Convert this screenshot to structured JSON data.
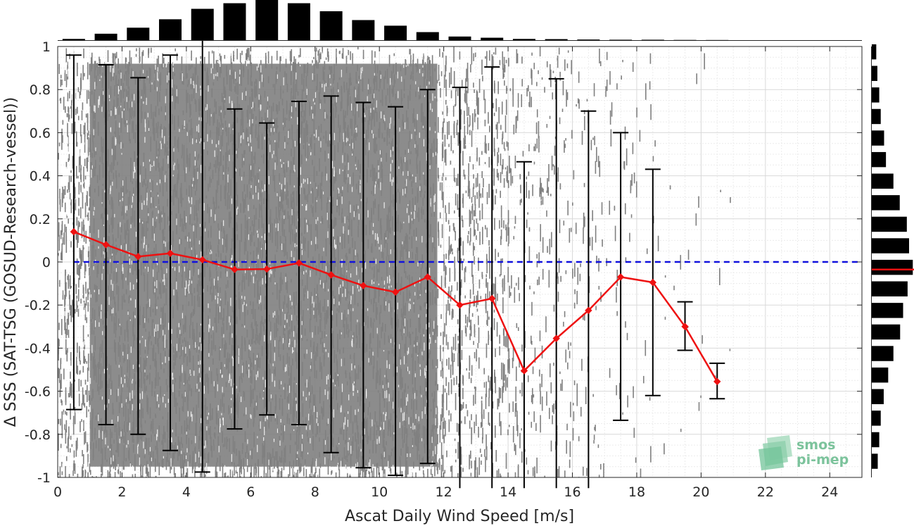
{
  "chart_data": {
    "type": "scatter",
    "xlabel": "Ascat Daily Wind Speed [m/s]",
    "ylabel": "Δ SSS (SAT-TSG (GOSUD-Research-vessel))",
    "xlim": [
      0,
      25
    ],
    "ylim": [
      -1,
      1
    ],
    "xticks": [
      0,
      2,
      4,
      6,
      8,
      10,
      12,
      14,
      16,
      18,
      20,
      22,
      24
    ],
    "yticks": [
      -1,
      -0.8,
      -0.6,
      -0.4,
      -0.2,
      0,
      0.2,
      0.4,
      0.6,
      0.8,
      1
    ],
    "grid": true,
    "colors": {
      "scatter": "#808080",
      "mean_line": "#ee1111",
      "reference_line": "#1111dd",
      "error_bars": "#000000",
      "histograms": "#000000",
      "logo": "#6fbf96"
    },
    "reference_line_y": 0,
    "bins": {
      "x": [
        0.5,
        1.5,
        2.5,
        3.5,
        4.5,
        5.5,
        6.5,
        7.5,
        8.5,
        9.5,
        10.5,
        11.5,
        12.5,
        13.5,
        14.5,
        15.5,
        16.5,
        17.5,
        18.5,
        19.5,
        20.5
      ],
      "mean": [
        0.14,
        0.08,
        0.025,
        0.04,
        0.01,
        -0.035,
        -0.033,
        -0.005,
        -0.06,
        -0.11,
        -0.14,
        -0.07,
        -0.2,
        -0.17,
        -0.505,
        -0.355,
        -0.225,
        -0.07,
        -0.095,
        -0.3,
        -0.555
      ],
      "upper": [
        0.96,
        0.915,
        0.855,
        0.96,
        1.04,
        0.71,
        0.645,
        0.745,
        0.77,
        0.74,
        0.72,
        0.8,
        0.81,
        0.905,
        0.465,
        0.85,
        0.7,
        0.6,
        0.43,
        -0.185,
        -0.47
      ],
      "lower": [
        -0.685,
        -0.755,
        -0.8,
        -0.875,
        -0.975,
        -0.775,
        -0.71,
        -0.755,
        -0.885,
        -0.955,
        -0.99,
        -0.935,
        -1.05,
        -1.05,
        -1.05,
        -1.05,
        -1.05,
        -0.735,
        -0.62,
        -0.41,
        -0.635
      ]
    },
    "top_histogram": {
      "x": [
        0.5,
        1.5,
        2.5,
        3.5,
        4.5,
        5.5,
        6.5,
        7.5,
        8.5,
        9.5,
        10.5,
        11.5,
        12.5,
        13.5,
        14.5,
        15.5,
        16.5,
        17.5,
        18.5,
        19.5,
        20.5
      ],
      "relative_count": [
        0.03,
        0.16,
        0.31,
        0.52,
        0.78,
        0.92,
        1.0,
        0.92,
        0.72,
        0.5,
        0.36,
        0.2,
        0.09,
        0.06,
        0.03,
        0.025,
        0.015,
        0.01,
        0.01,
        0.005,
        0.003
      ]
    },
    "right_histogram": {
      "y": [
        0.975,
        0.875,
        0.775,
        0.675,
        0.575,
        0.475,
        0.375,
        0.275,
        0.175,
        0.075,
        -0.025,
        -0.125,
        -0.225,
        -0.325,
        -0.425,
        -0.525,
        -0.625,
        -0.725,
        -0.825,
        -0.925
      ],
      "relative_count": [
        0.12,
        0.15,
        0.2,
        0.24,
        0.33,
        0.38,
        0.58,
        0.75,
        0.94,
        1.0,
        1.1,
        0.96,
        0.84,
        0.76,
        0.58,
        0.44,
        0.32,
        0.24,
        0.2,
        0.16
      ],
      "median_y": -0.035
    }
  },
  "logo": {
    "line1": "smos",
    "line2": "pi-mep"
  }
}
